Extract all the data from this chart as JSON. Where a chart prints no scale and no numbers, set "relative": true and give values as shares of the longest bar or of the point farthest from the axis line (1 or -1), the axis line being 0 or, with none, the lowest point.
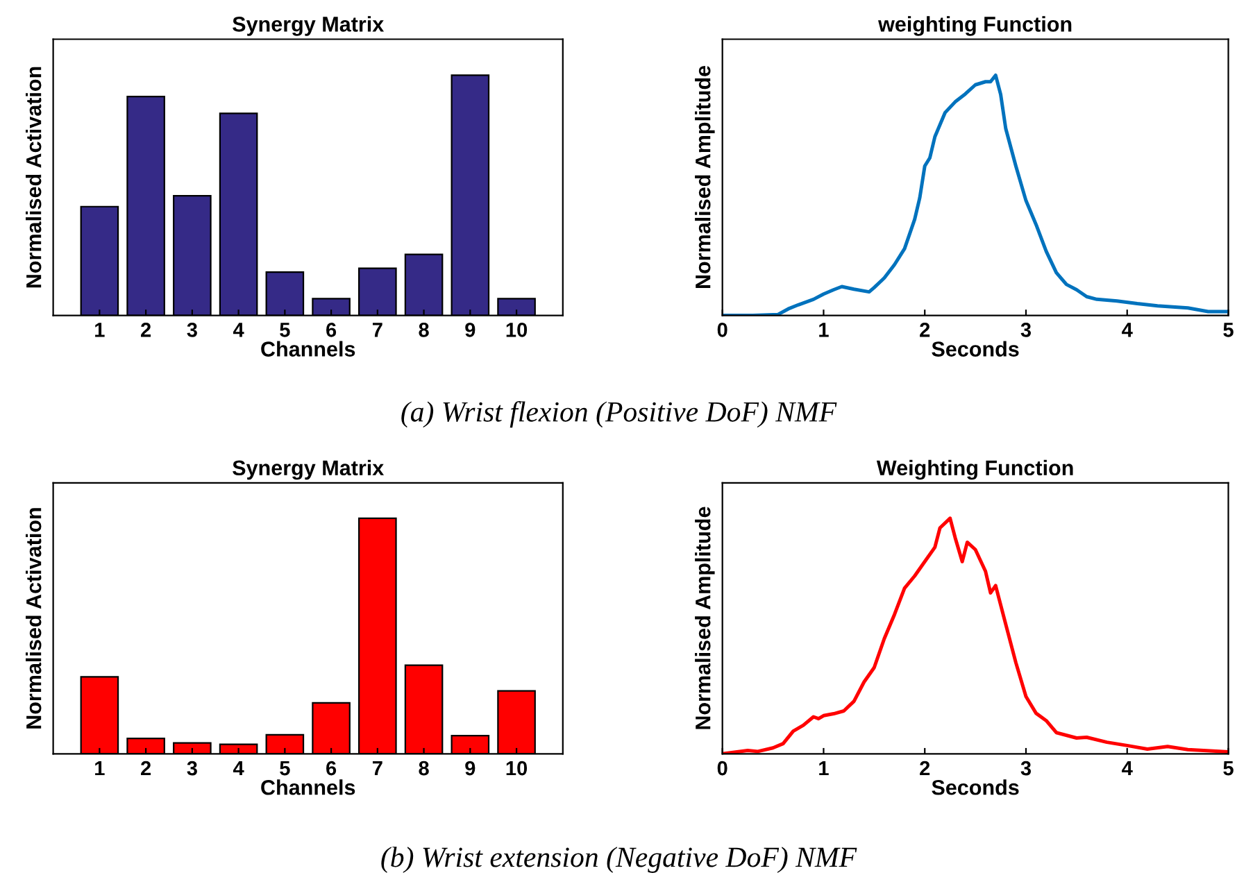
{
  "chart_data": [
    {
      "type": "bar",
      "title": "Synergy Matrix",
      "xlabel": "Channels",
      "ylabel": "Normalised Activation",
      "relative": true,
      "categories": [
        "1",
        "2",
        "3",
        "4",
        "5",
        "6",
        "7",
        "8",
        "9",
        "10"
      ],
      "color": "#352a87",
      "values": [
        0.453,
        0.911,
        0.498,
        0.841,
        0.18,
        0.07,
        0.196,
        0.254,
        1,
        0.07
      ],
      "annotations": [
        "(a) Wrist flexion (Positive DoF) NMF"
      ]
    },
    {
      "type": "line",
      "title": "weighting Function",
      "xlabel": "Seconds",
      "ylabel": "Normalised Amplitude",
      "relative": true,
      "xlim": [
        0,
        5
      ],
      "xticks": [
        0,
        1,
        2,
        3,
        4,
        5
      ],
      "color": "#0072bd",
      "x": [
        0,
        0.3,
        0.55,
        0.65,
        0.75,
        0.9,
        1.0,
        1.1,
        1.18,
        1.3,
        1.45,
        1.5,
        1.6,
        1.7,
        1.8,
        1.9,
        1.95,
        2.0,
        2.05,
        2.1,
        2.2,
        2.3,
        2.4,
        2.5,
        2.6,
        2.65,
        2.7,
        2.75,
        2.8,
        2.9,
        3.0,
        3.1,
        3.2,
        3.3,
        3.4,
        3.5,
        3.6,
        3.7,
        3.9,
        4.1,
        4.3,
        4.6,
        4.8,
        5
      ],
      "values": [
        0,
        0,
        0.004,
        0.027,
        0.044,
        0.067,
        0.089,
        0.107,
        0.12,
        0.109,
        0.098,
        0.116,
        0.156,
        0.211,
        0.278,
        0.4,
        0.489,
        0.622,
        0.656,
        0.744,
        0.844,
        0.889,
        0.922,
        0.96,
        0.973,
        0.973,
        1,
        0.92,
        0.778,
        0.622,
        0.478,
        0.378,
        0.267,
        0.178,
        0.129,
        0.107,
        0.078,
        0.067,
        0.06,
        0.049,
        0.04,
        0.031,
        0.016,
        0.016
      ]
    },
    {
      "type": "bar",
      "title": "Synergy Matrix",
      "xlabel": "Channels",
      "ylabel": "Normalised Activation",
      "relative": true,
      "categories": [
        "1",
        "2",
        "3",
        "4",
        "5",
        "6",
        "7",
        "8",
        "9",
        "10"
      ],
      "color": "#ff0000",
      "values": [
        0.327,
        0.065,
        0.046,
        0.04,
        0.081,
        0.216,
        1,
        0.376,
        0.077,
        0.267
      ],
      "annotations": [
        "(b) Wrist extension (Negative DoF) NMF"
      ]
    },
    {
      "type": "line",
      "title": "Weighting Function",
      "xlabel": "Seconds",
      "ylabel": "Normalised Amplitude",
      "relative": true,
      "xlim": [
        0,
        5
      ],
      "xticks": [
        0,
        1,
        2,
        3,
        4,
        5
      ],
      "color": "#ff0000",
      "x": [
        0,
        0.25,
        0.35,
        0.5,
        0.6,
        0.7,
        0.8,
        0.9,
        0.95,
        1.0,
        1.1,
        1.2,
        1.3,
        1.4,
        1.5,
        1.6,
        1.7,
        1.8,
        1.9,
        2.0,
        2.1,
        2.15,
        2.25,
        2.3,
        2.37,
        2.42,
        2.5,
        2.6,
        2.65,
        2.7,
        2.8,
        2.9,
        3.0,
        3.1,
        3.2,
        3.3,
        3.5,
        3.6,
        3.8,
        4.0,
        4.2,
        4.4,
        4.6,
        5
      ],
      "values": [
        0,
        0.014,
        0.01,
        0.025,
        0.043,
        0.096,
        0.121,
        0.157,
        0.149,
        0.162,
        0.17,
        0.182,
        0.223,
        0.305,
        0.366,
        0.489,
        0.591,
        0.703,
        0.755,
        0.816,
        0.877,
        0.959,
        1,
        0.918,
        0.816,
        0.898,
        0.867,
        0.775,
        0.683,
        0.714,
        0.55,
        0.387,
        0.243,
        0.172,
        0.141,
        0.09,
        0.067,
        0.07,
        0.049,
        0.035,
        0.02,
        0.031,
        0.018,
        0.008
      ]
    }
  ]
}
